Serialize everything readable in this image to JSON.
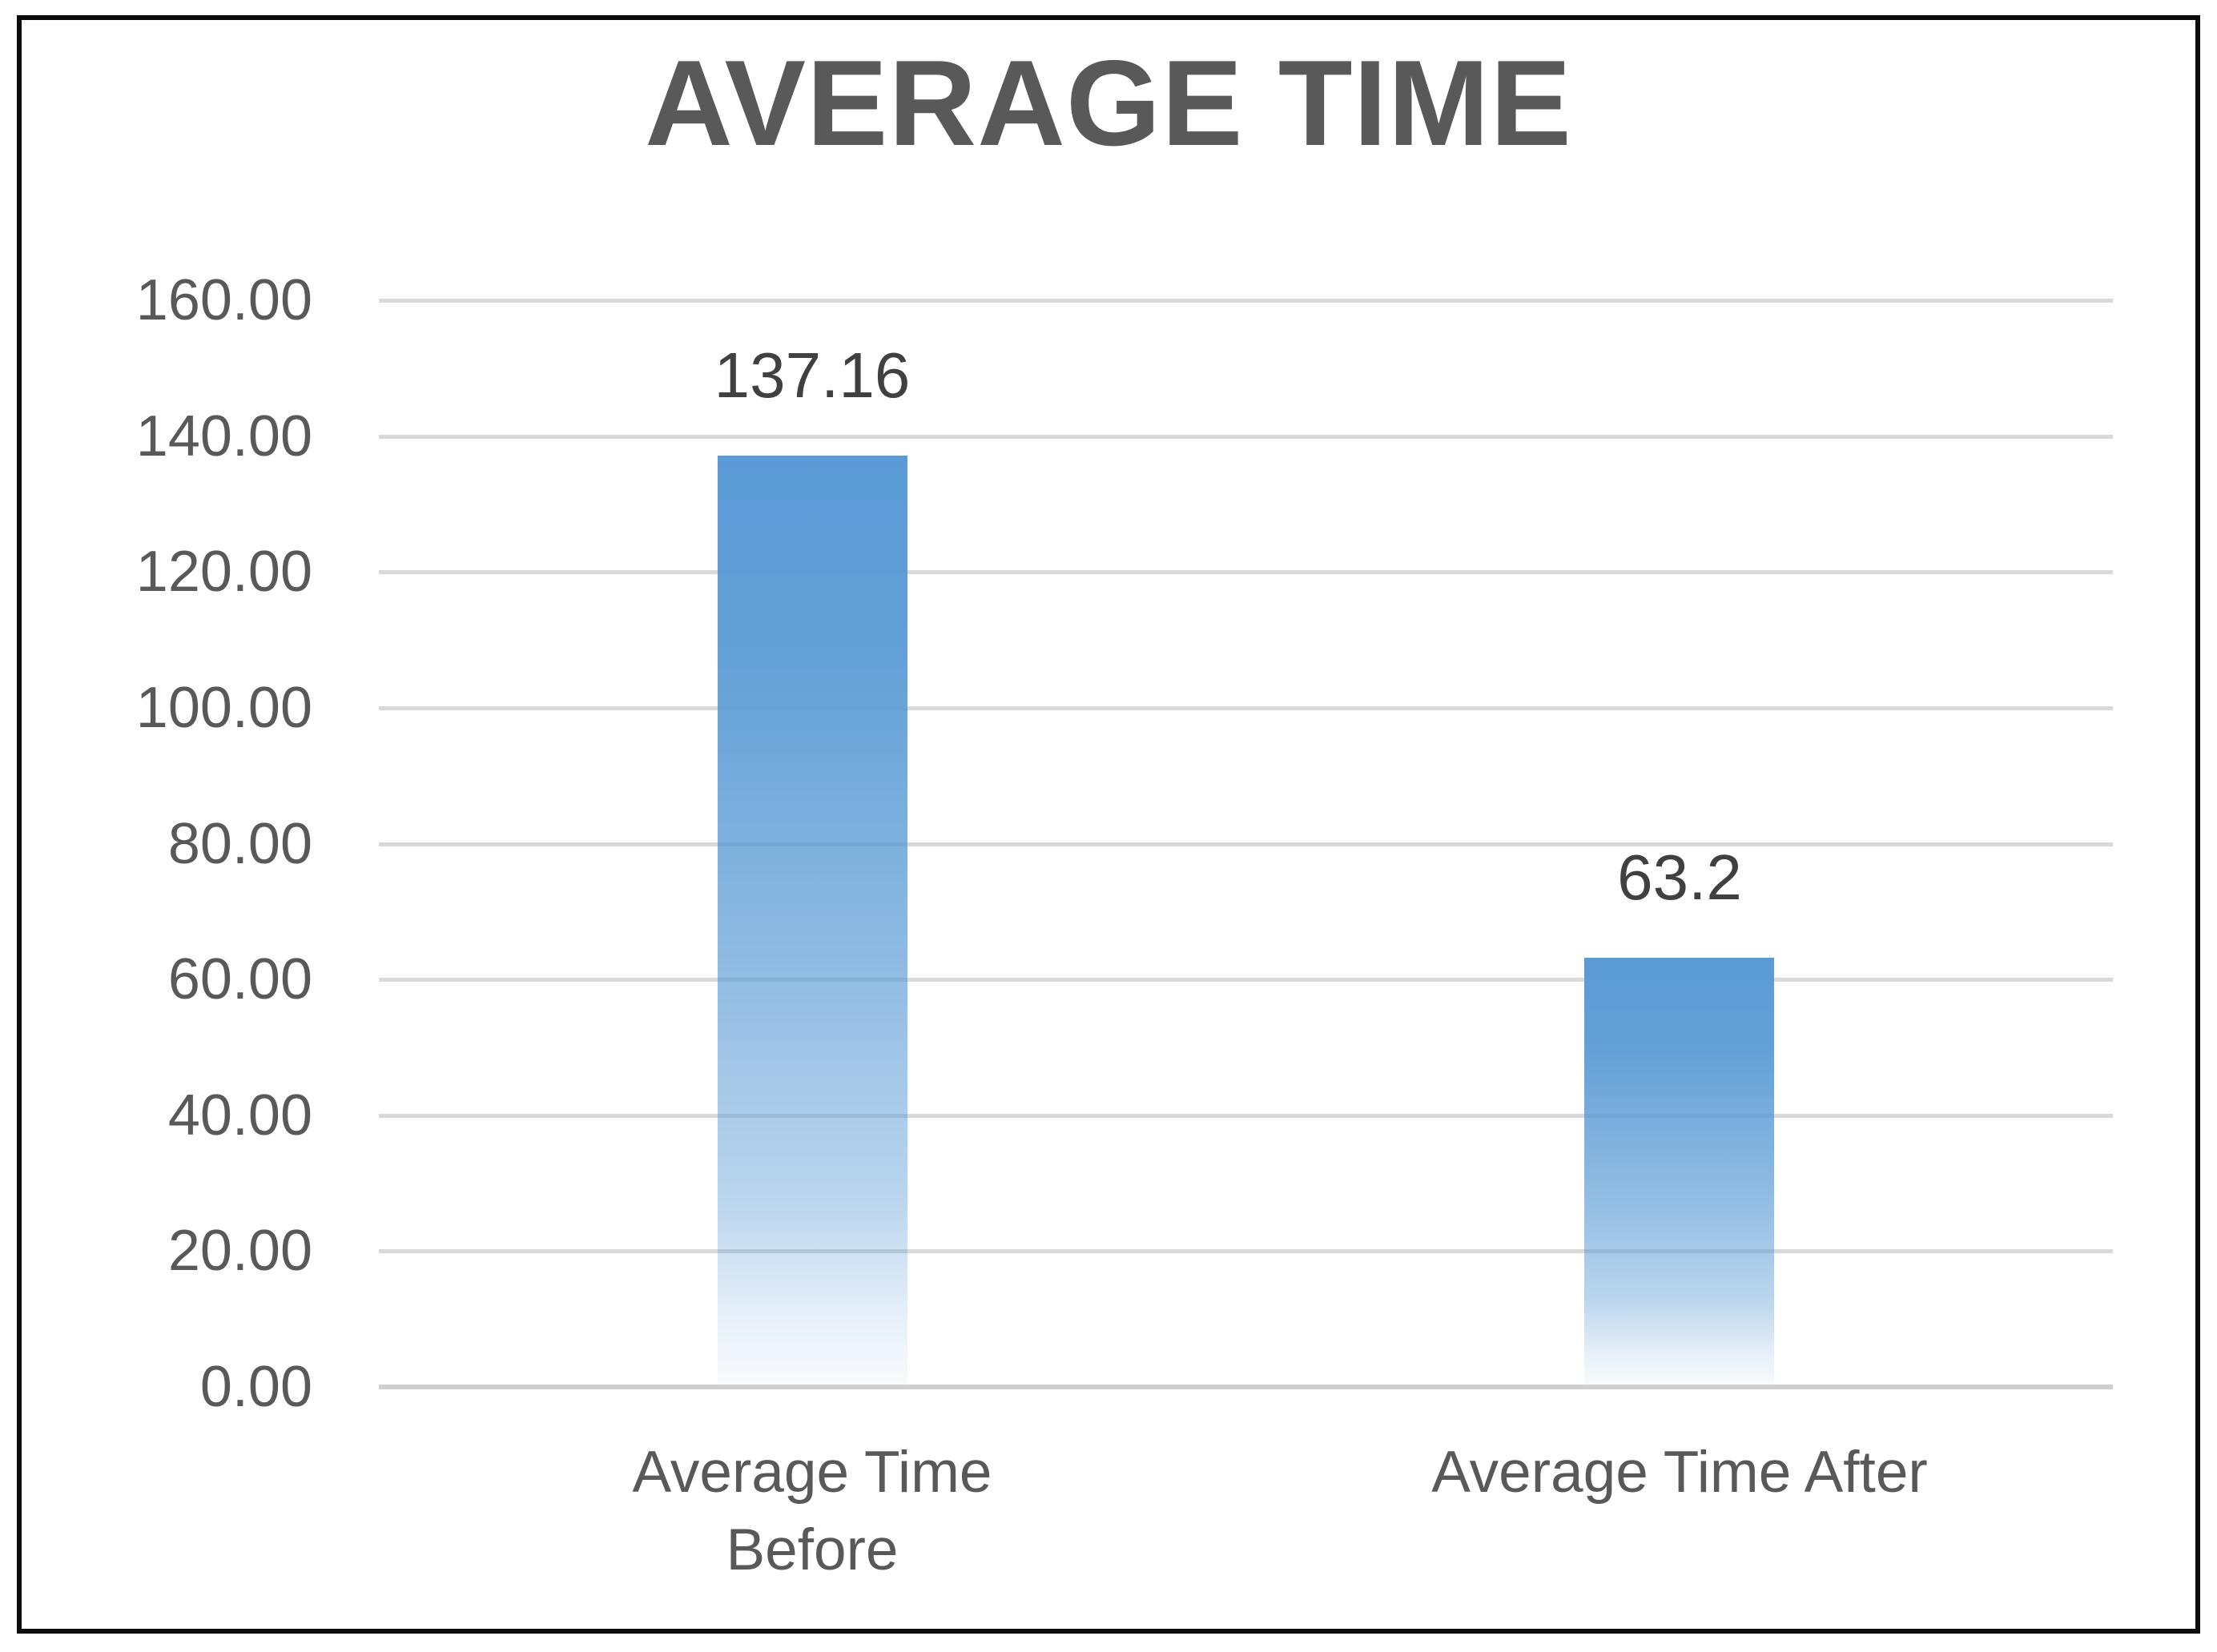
{
  "chart_data": {
    "type": "bar",
    "title": "AVERAGE TIME",
    "categories": [
      "Average Time Before",
      "Average Time After"
    ],
    "values": [
      137.16,
      63.2
    ],
    "value_labels": [
      "137.16",
      "63.2"
    ],
    "ylim": [
      0,
      160
    ],
    "ytick_step": 20,
    "yticks": [
      {
        "value": 160,
        "label": "160.00"
      },
      {
        "value": 140,
        "label": "140.00"
      },
      {
        "value": 120,
        "label": "120.00"
      },
      {
        "value": 100,
        "label": "100.00"
      },
      {
        "value": 80,
        "label": "80.00"
      },
      {
        "value": 60,
        "label": "60.00"
      },
      {
        "value": 40,
        "label": "40.00"
      },
      {
        "value": 20,
        "label": "20.00"
      },
      {
        "value": 0,
        "label": "0.00"
      }
    ],
    "grid": true,
    "legend_position": "none",
    "colors": {
      "bar_top": "#5b9bd5",
      "bar_fade_background": "#ffffff",
      "gridline": "#d9d9d9",
      "baseline": "#cfcfcf",
      "title_text": "#595959",
      "axis_text": "#595959",
      "data_label_text": "#404040",
      "frame_border": "#0b0b0b"
    }
  }
}
